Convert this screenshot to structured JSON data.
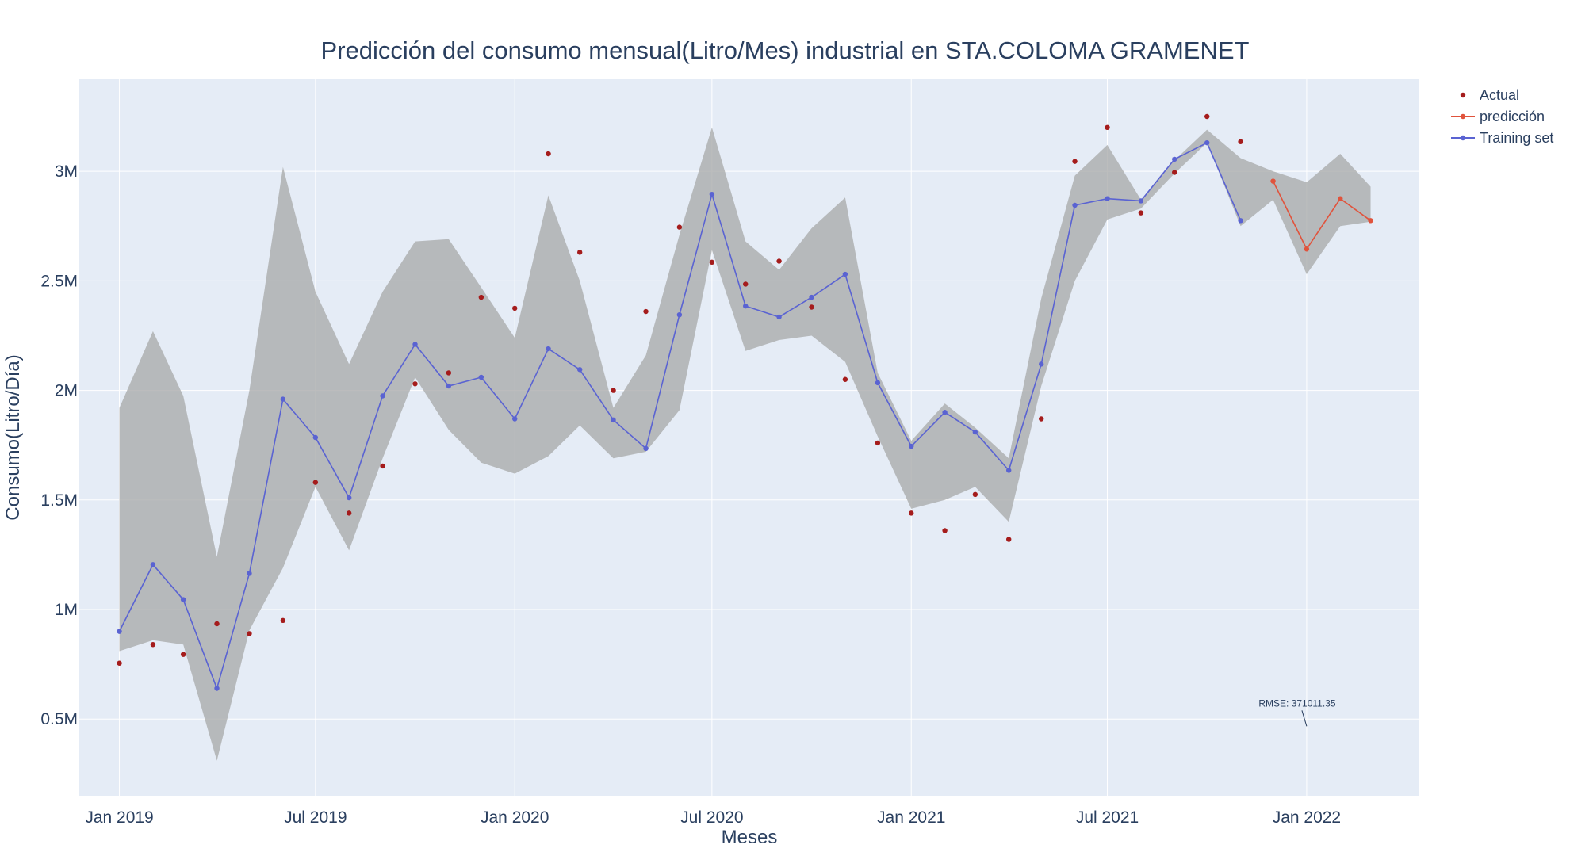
{
  "chart_data": {
    "type": "line",
    "title": "Predicción del consumo mensual(Litro/Mes) industrial en STA.COLOMA GRAMENET",
    "xlabel": "Meses",
    "ylabel": "Consumo(Litro/Día)",
    "x_ticks": [
      "2019-01",
      "2019-07",
      "2020-01",
      "2020-07",
      "2021-01",
      "2021-07",
      "2022-01"
    ],
    "x_tick_labels": [
      "Jan 2019",
      "Jul 2019",
      "Jan 2020",
      "Jul 2020",
      "Jan 2021",
      "Jul 2021",
      "Jan 2022"
    ],
    "y_ticks": [
      500000,
      1000000,
      1500000,
      2000000,
      2500000,
      3000000
    ],
    "y_tick_labels": [
      "0.5M",
      "1M",
      "1.5M",
      "2M",
      "2.5M",
      "3M"
    ],
    "xlim": [
      "2018-11-25",
      "2022-04-15"
    ],
    "ylim": [
      150000,
      3420000
    ],
    "grid": true,
    "legend_position": "top-right",
    "colors": {
      "actual": "#a51c1c",
      "prediccion": "#e0533c",
      "training": "#5a63d2",
      "band": "#a9aaaa",
      "plot_bg": "#e5ecf6",
      "grid": "#ffffff",
      "text": "#2a3f5f"
    },
    "series": [
      {
        "name": "Actual",
        "mode": "markers",
        "x": [
          "2019-01",
          "2019-02",
          "2019-03",
          "2019-04",
          "2019-05",
          "2019-06",
          "2019-07",
          "2019-08",
          "2019-09",
          "2019-10",
          "2019-11",
          "2019-12",
          "2020-01",
          "2020-02",
          "2020-03",
          "2020-04",
          "2020-05",
          "2020-06",
          "2020-07",
          "2020-08",
          "2020-09",
          "2020-10",
          "2020-11",
          "2020-12",
          "2021-01",
          "2021-02",
          "2021-03",
          "2021-04",
          "2021-05",
          "2021-06",
          "2021-07",
          "2021-08",
          "2021-09",
          "2021-10",
          "2021-11"
        ],
        "values": [
          755000,
          840000,
          795000,
          935000,
          890000,
          950000,
          1580000,
          1440000,
          1655000,
          2030000,
          2080000,
          2425000,
          2375000,
          3080000,
          2630000,
          2000000,
          2360000,
          2745000,
          2585000,
          2485000,
          2590000,
          2380000,
          2050000,
          1760000,
          1440000,
          1360000,
          1525000,
          1320000,
          1870000,
          3045000,
          3200000,
          2810000,
          2995000,
          3250000,
          3135000
        ]
      },
      {
        "name": "predicción",
        "mode": "lines+markers",
        "x": [
          "2021-12",
          "2022-01",
          "2022-02",
          "2022-03"
        ],
        "values": [
          2955000,
          2645000,
          2875000,
          2775000
        ]
      },
      {
        "name": "Training set",
        "mode": "lines+markers",
        "x": [
          "2019-01",
          "2019-02",
          "2019-03",
          "2019-04",
          "2019-05",
          "2019-06",
          "2019-07",
          "2019-08",
          "2019-09",
          "2019-10",
          "2019-11",
          "2019-12",
          "2020-01",
          "2020-02",
          "2020-03",
          "2020-04",
          "2020-05",
          "2020-06",
          "2020-07",
          "2020-08",
          "2020-09",
          "2020-10",
          "2020-11",
          "2020-12",
          "2021-01",
          "2021-02",
          "2021-03",
          "2021-04",
          "2021-05",
          "2021-06",
          "2021-07",
          "2021-08",
          "2021-09",
          "2021-10",
          "2021-11"
        ],
        "values": [
          900000,
          1205000,
          1045000,
          640000,
          1165000,
          1960000,
          1785000,
          1510000,
          1975000,
          2210000,
          2020000,
          2060000,
          1870000,
          2190000,
          2095000,
          1865000,
          1735000,
          2345000,
          2895000,
          2385000,
          2335000,
          2425000,
          2530000,
          2035000,
          1745000,
          1900000,
          1810000,
          1635000,
          2120000,
          2845000,
          2875000,
          2865000,
          3055000,
          3130000,
          2775000
        ]
      }
    ],
    "band": {
      "x": [
        "2019-01",
        "2019-02",
        "2019-03",
        "2019-04",
        "2019-05",
        "2019-06",
        "2019-07",
        "2019-08",
        "2019-09",
        "2019-10",
        "2019-11",
        "2019-12",
        "2020-01",
        "2020-02",
        "2020-03",
        "2020-04",
        "2020-05",
        "2020-06",
        "2020-07",
        "2020-08",
        "2020-09",
        "2020-10",
        "2020-11",
        "2020-12",
        "2021-01",
        "2021-02",
        "2021-03",
        "2021-04",
        "2021-05",
        "2021-06",
        "2021-07",
        "2021-08",
        "2021-09",
        "2021-10",
        "2021-11",
        "2021-12",
        "2022-01",
        "2022-02",
        "2022-03"
      ],
      "upper": [
        1920000,
        2270000,
        1975000,
        1240000,
        2000000,
        3020000,
        2450000,
        2120000,
        2450000,
        2680000,
        2690000,
        2470000,
        2240000,
        2890000,
        2500000,
        1920000,
        2160000,
        2710000,
        3200000,
        2680000,
        2550000,
        2740000,
        2880000,
        2080000,
        1770000,
        1940000,
        1830000,
        1690000,
        2420000,
        2980000,
        3120000,
        2870000,
        3050000,
        3190000,
        3060000,
        3000000,
        2950000,
        3080000,
        2930000
      ],
      "lower": [
        810000,
        860000,
        840000,
        310000,
        905000,
        1190000,
        1560000,
        1270000,
        1690000,
        2060000,
        1820000,
        1670000,
        1620000,
        1700000,
        1840000,
        1690000,
        1720000,
        1910000,
        2640000,
        2180000,
        2230000,
        2250000,
        2130000,
        1790000,
        1460000,
        1500000,
        1560000,
        1400000,
        2020000,
        2500000,
        2780000,
        2830000,
        2990000,
        3130000,
        2750000,
        2870000,
        2530000,
        2750000,
        2770000
      ]
    },
    "annotation": {
      "text": "RMSE: 371011.35",
      "x": "2022-01",
      "y": 460000
    }
  }
}
